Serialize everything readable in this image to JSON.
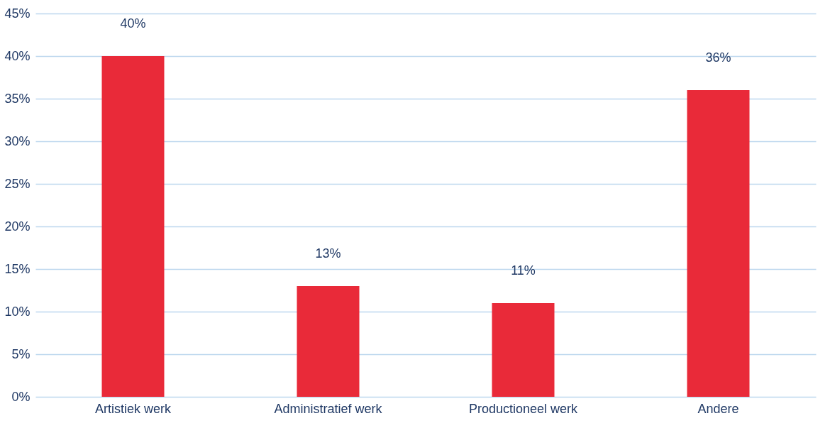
{
  "chart_data": {
    "type": "bar",
    "categories": [
      "Artistiek werk",
      "Administratief werk",
      "Productioneel werk",
      "Andere"
    ],
    "values": [
      40,
      13,
      11,
      36
    ],
    "color": "#e92a39",
    "ylim": [
      0,
      45
    ],
    "yticks": [
      {
        "value": 0,
        "label": "0%"
      },
      {
        "value": 5,
        "label": "5%"
      },
      {
        "value": 10,
        "label": "10%"
      },
      {
        "value": 15,
        "label": "15%"
      },
      {
        "value": 20,
        "label": "20%"
      },
      {
        "value": 25,
        "label": "25%"
      },
      {
        "value": 30,
        "label": "30%"
      },
      {
        "value": 35,
        "label": "35%"
      },
      {
        "value": 40,
        "label": "40%"
      },
      {
        "value": 45,
        "label": "45%"
      }
    ],
    "grid": "y",
    "value_labels": [
      "40%",
      "13%",
      "11%",
      "36%"
    ]
  }
}
